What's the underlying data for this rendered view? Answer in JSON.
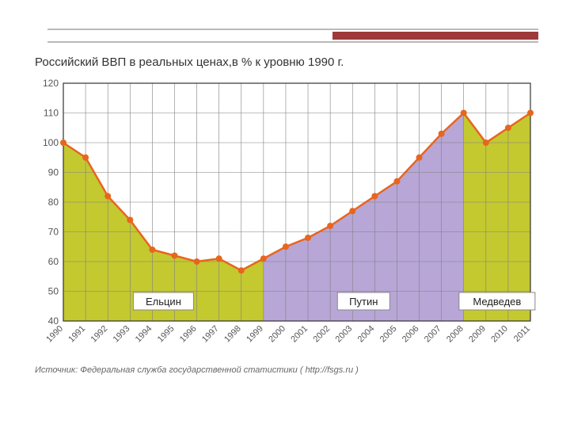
{
  "chart": {
    "type": "area-line",
    "title": "Российский ВВП в реальных ценах,в % к уровню 1990 г.",
    "source": "Источник: Федеральная служба государственной статистики ( http://fsgs.ru )",
    "years": [
      1990,
      1991,
      1992,
      1993,
      1994,
      1995,
      1996,
      1997,
      1998,
      1999,
      2000,
      2001,
      2002,
      2003,
      2004,
      2005,
      2006,
      2007,
      2008,
      2009,
      2010,
      2011
    ],
    "values": [
      100,
      95,
      82,
      74,
      64,
      62,
      60,
      61,
      57,
      61,
      65,
      68,
      72,
      77,
      82,
      87,
      95,
      103,
      110,
      100,
      105,
      110
    ],
    "ylim": [
      40,
      120
    ],
    "ytick_step": 10,
    "line_color": "#e8651e",
    "line_width": 2.5,
    "marker_color": "#e8651e",
    "marker_radius": 4,
    "grid_color": "#808080",
    "grid_width": 0.6,
    "axis_color": "#333333",
    "background": "#ffffff",
    "label_fontsize": 12,
    "periods": [
      {
        "label": "Ельцин",
        "from": 1990,
        "to": 1999,
        "fill": "#c4c92f"
      },
      {
        "label": "Путин",
        "from": 1999,
        "to": 2008,
        "fill": "#b7a6d6"
      },
      {
        "label": "Медведев",
        "from": 2008,
        "to": 2011,
        "fill": "#c4c92f"
      }
    ]
  }
}
